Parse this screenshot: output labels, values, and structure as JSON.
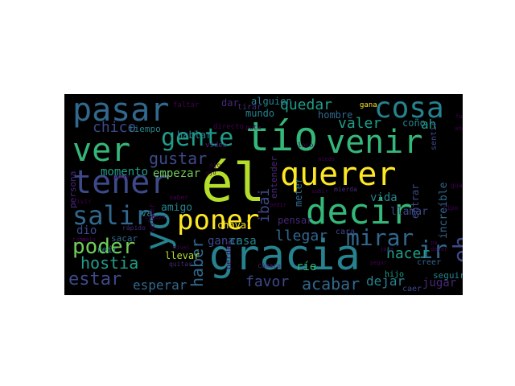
{
  "palette": {
    "yellow": "#fde725",
    "lime": "#b5de2b",
    "green": "#6ece58",
    "teal_green": "#35b779",
    "teal": "#1f9e89",
    "cyan": "#26828e",
    "blue": "#31688e",
    "indigo": "#3e4989",
    "purple": "#482878",
    "dark_purple": "#440154",
    "background": "#000000"
  },
  "words": [
    {
      "text": "él",
      "color": "#b5de2b"
    },
    {
      "text": "gracia",
      "color": "#26828e"
    },
    {
      "text": "tío",
      "color": "#35b779"
    },
    {
      "text": "querer",
      "color": "#fde725"
    },
    {
      "text": "decir",
      "color": "#35b779"
    },
    {
      "text": "pasar",
      "color": "#31688e"
    },
    {
      "text": "ver",
      "color": "#35b779"
    },
    {
      "text": "tener",
      "color": "#3e4989"
    },
    {
      "text": "venir",
      "color": "#35b779"
    },
    {
      "text": "cosa",
      "color": "#26828e"
    },
    {
      "text": "yo",
      "color": "#26828e"
    },
    {
      "text": "poner",
      "color": "#fde725"
    },
    {
      "text": "gente",
      "color": "#1f9e89"
    },
    {
      "text": "salir",
      "color": "#31688e"
    },
    {
      "text": "mirar",
      "color": "#31688e"
    },
    {
      "text": "poder",
      "color": "#6ece58"
    },
    {
      "text": "eh",
      "color": "#3e4989"
    },
    {
      "text": "ir",
      "color": "#31688e"
    },
    {
      "text": "estar",
      "color": "#3e4989"
    },
    {
      "text": "quedar",
      "color": "#1f9e89"
    },
    {
      "text": "llegar",
      "color": "#31688e"
    },
    {
      "text": "hostia",
      "color": "#1f9e89"
    },
    {
      "text": "valer",
      "color": "#1f9e89"
    },
    {
      "text": "gustar",
      "color": "#3e4989"
    },
    {
      "text": "acabar",
      "color": "#31688e"
    },
    {
      "text": "hacer",
      "color": "#1f9e89"
    },
    {
      "text": "haber",
      "color": "#31688e"
    },
    {
      "text": "chico",
      "color": "#3e4989"
    },
    {
      "text": "favor",
      "color": "#3e4989"
    },
    {
      "text": "esperar",
      "color": "#31688e"
    },
    {
      "text": "ibai",
      "color": "#3e4989"
    },
    {
      "text": "jugar",
      "color": "#482878"
    },
    {
      "text": "dejar",
      "color": "#26828e"
    },
    {
      "text": "momento",
      "color": "#1f9e89"
    },
    {
      "text": "empezar",
      "color": "#6ece58"
    },
    {
      "text": "hablar",
      "color": "#26828e"
    },
    {
      "text": "ah",
      "color": "#1f9e89"
    },
    {
      "text": "coño",
      "color": "#26828e"
    },
    {
      "text": "amigo",
      "color": "#26828e"
    },
    {
      "text": "vida",
      "color": "#26828e"
    },
    {
      "text": "dio",
      "color": "#3e4989"
    },
    {
      "text": "ganar",
      "color": "#3e4989"
    },
    {
      "text": "casa",
      "color": "#26828e"
    },
    {
      "text": "llevar",
      "color": "#b5de2b"
    },
    {
      "text": "ríe",
      "color": "#35b779"
    },
    {
      "text": "llamar",
      "color": "#3e4989"
    },
    {
      "text": "entrar",
      "color": "#3e4989"
    },
    {
      "text": "increíble",
      "color": "#31688e"
    },
    {
      "text": "alguien",
      "color": "#26828e"
    },
    {
      "text": "mundo",
      "color": "#26828e"
    },
    {
      "text": "hombre",
      "color": "#31688e"
    },
    {
      "text": "pensar",
      "color": "#482878"
    },
    {
      "text": "meter",
      "color": "#31688e"
    },
    {
      "text": "dar",
      "color": "#482878"
    },
    {
      "text": "tiempo",
      "color": "#26828e"
    },
    {
      "text": "volver",
      "color": "#440154"
    },
    {
      "text": "chaval",
      "color": "#fde725"
    },
    {
      "text": "perder",
      "color": "#440154"
    },
    {
      "text": "sacar",
      "color": "#31688e"
    },
    {
      "text": "reír",
      "color": "#26828e"
    },
    {
      "text": "va",
      "color": "#26828e"
    },
    {
      "text": "persona",
      "color": "#482878"
    },
    {
      "text": "seguir",
      "color": "#26828e"
    },
    {
      "text": "caer",
      "color": "#3e4989"
    },
    {
      "text": "creer",
      "color": "#31688e"
    },
    {
      "text": "oír",
      "color": "#fde725"
    },
    {
      "text": "sentir",
      "color": "#3e4989"
    },
    {
      "text": "entender",
      "color": "#482878"
    },
    {
      "text": "tirar",
      "color": "#482878"
    },
    {
      "text": "hijo",
      "color": "#1f9e89"
    },
    {
      "text": "cara",
      "color": "#3e4989"
    },
    {
      "text": "gana",
      "color": "#fde725"
    },
    {
      "text": "música",
      "color": "#3e4989"
    },
    {
      "text": "faltar",
      "color": "#440154"
    },
    {
      "text": "directo",
      "color": "#440154"
    },
    {
      "text": "vídeo",
      "color": "#482878"
    },
    {
      "text": "vivir",
      "color": "#440154"
    },
    {
      "text": "quitar",
      "color": "#482878"
    },
    {
      "text": "tipo",
      "color": "#440154"
    },
    {
      "text": "guapo",
      "color": "#440154"
    },
    {
      "text": "cámara",
      "color": "#482878"
    },
    {
      "text": "mierda",
      "color": "#482878"
    },
    {
      "text": "ojo",
      "color": "#440154"
    },
    {
      "text": "rápido",
      "color": "#482878"
    },
    {
      "text": "señor",
      "color": "#482878"
    },
    {
      "text": "equipo",
      "color": "#440154"
    },
    {
      "text": "saber",
      "color": "#440154"
    },
    {
      "text": "loco",
      "color": "#440154"
    },
    {
      "text": "puta",
      "color": "#440154"
    },
    {
      "text": "nivel",
      "color": "#440154"
    },
    {
      "text": "pegar",
      "color": "#440154"
    },
    {
      "text": "fuera",
      "color": "#440154"
    },
    {
      "text": "año",
      "color": "#440154"
    },
    {
      "text": "padre",
      "color": "#440154"
    },
    {
      "text": "subir",
      "color": "#440154"
    },
    {
      "text": "pedir",
      "color": "#440154"
    },
    {
      "text": "miedo",
      "color": "#440154"
    },
    {
      "text": "cabeza",
      "color": "#440154"
    },
    {
      "text": "toma",
      "color": "#440154"
    },
    {
      "text": "malo",
      "color": "#440154"
    },
    {
      "text": "jaja",
      "color": "#440154"
    },
    {
      "text": "dejar",
      "color": "#440154"
    },
    {
      "text": "pa",
      "color": "#440154"
    },
    {
      "text": "ojo",
      "color": "#440154"
    }
  ]
}
